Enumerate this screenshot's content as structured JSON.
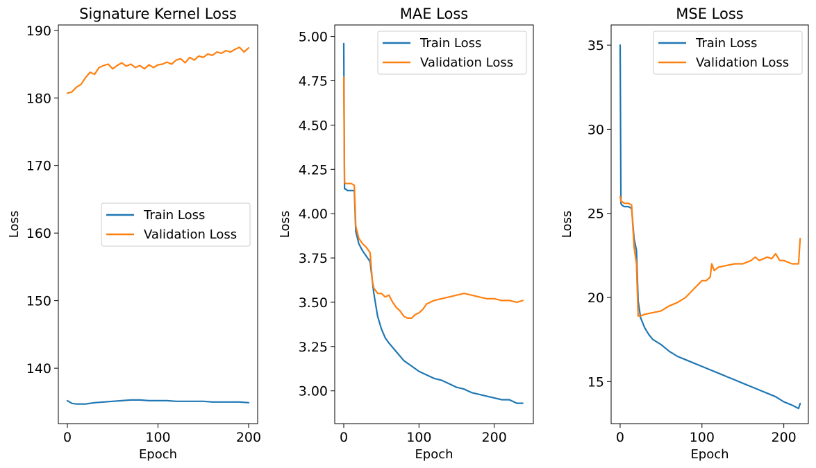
{
  "colors": {
    "train": "#1f77b4",
    "validation": "#ff7f0e"
  },
  "chart_data": [
    {
      "type": "line",
      "title": "Signature Kernel Loss",
      "xlabel": "Epoch",
      "ylabel": "Loss",
      "xlim": [
        -10,
        210
      ],
      "ylim": [
        131.8,
        190.8
      ],
      "xticks": [
        0,
        100,
        200
      ],
      "yticks": [
        140,
        150,
        160,
        170,
        180,
        190
      ],
      "legend": "center-right",
      "series": [
        {
          "name": "Train Loss",
          "color": "#1f77b4",
          "x": [
            0,
            5,
            10,
            20,
            30,
            40,
            50,
            60,
            70,
            80,
            90,
            100,
            110,
            120,
            130,
            140,
            150,
            160,
            170,
            180,
            190,
            200
          ],
          "y": [
            135.2,
            134.8,
            134.7,
            134.7,
            134.9,
            135.0,
            135.1,
            135.2,
            135.3,
            135.3,
            135.2,
            135.2,
            135.2,
            135.1,
            135.1,
            135.1,
            135.1,
            135.0,
            135.0,
            135.0,
            135.0,
            134.9
          ]
        },
        {
          "name": "Validation Loss",
          "color": "#ff7f0e",
          "x": [
            0,
            5,
            10,
            15,
            20,
            25,
            30,
            35,
            40,
            45,
            50,
            55,
            60,
            65,
            70,
            75,
            80,
            85,
            90,
            95,
            100,
            105,
            110,
            115,
            120,
            125,
            130,
            135,
            140,
            145,
            150,
            155,
            160,
            165,
            170,
            175,
            180,
            185,
            190,
            195,
            200
          ],
          "y": [
            180.7,
            180.9,
            181.6,
            182.0,
            183.0,
            183.8,
            183.5,
            184.5,
            184.8,
            185.0,
            184.3,
            184.8,
            185.2,
            184.7,
            185.0,
            184.5,
            184.8,
            184.3,
            184.9,
            184.5,
            184.9,
            185.0,
            185.3,
            185.0,
            185.6,
            185.8,
            185.2,
            186.0,
            185.6,
            186.2,
            186.0,
            186.5,
            186.3,
            186.8,
            186.6,
            187.0,
            186.8,
            187.2,
            187.5,
            186.8,
            187.4
          ]
        }
      ]
    },
    {
      "type": "line",
      "title": "MAE Loss",
      "xlabel": "Epoch",
      "ylabel": "Loss",
      "xlim": [
        -12,
        252
      ],
      "ylim": [
        2.815,
        5.065
      ],
      "xticks": [
        0,
        100,
        200
      ],
      "yticks": [
        3.0,
        3.25,
        3.5,
        3.75,
        4.0,
        4.25,
        4.5,
        4.75,
        5.0
      ],
      "legend": "top-right",
      "series": [
        {
          "name": "Train Loss",
          "color": "#1f77b4",
          "x": [
            0,
            1,
            2,
            5,
            10,
            14,
            16,
            20,
            25,
            30,
            35,
            40,
            45,
            50,
            55,
            60,
            70,
            80,
            90,
            100,
            110,
            120,
            130,
            140,
            150,
            160,
            170,
            180,
            190,
            200,
            210,
            220,
            230,
            238
          ],
          "y": [
            4.96,
            4.14,
            4.14,
            4.13,
            4.13,
            4.13,
            3.9,
            3.83,
            3.79,
            3.76,
            3.73,
            3.55,
            3.42,
            3.35,
            3.3,
            3.27,
            3.22,
            3.17,
            3.14,
            3.11,
            3.09,
            3.07,
            3.06,
            3.04,
            3.02,
            3.01,
            2.99,
            2.98,
            2.97,
            2.96,
            2.95,
            2.95,
            2.93,
            2.93
          ]
        },
        {
          "name": "Validation Loss",
          "color": "#ff7f0e",
          "x": [
            0,
            1,
            2,
            5,
            10,
            14,
            16,
            20,
            25,
            30,
            35,
            38,
            40,
            45,
            50,
            55,
            60,
            65,
            70,
            75,
            80,
            85,
            90,
            95,
            100,
            105,
            110,
            120,
            130,
            140,
            150,
            160,
            170,
            180,
            190,
            200,
            210,
            220,
            230,
            238
          ],
          "y": [
            4.77,
            4.18,
            4.17,
            4.17,
            4.17,
            4.16,
            3.93,
            3.86,
            3.83,
            3.81,
            3.78,
            3.62,
            3.58,
            3.55,
            3.55,
            3.53,
            3.54,
            3.5,
            3.47,
            3.45,
            3.42,
            3.41,
            3.41,
            3.43,
            3.44,
            3.46,
            3.49,
            3.51,
            3.52,
            3.53,
            3.54,
            3.55,
            3.54,
            3.53,
            3.52,
            3.52,
            3.51,
            3.51,
            3.5,
            3.51
          ]
        }
      ]
    },
    {
      "type": "line",
      "title": "MSE Loss",
      "xlabel": "Epoch",
      "ylabel": "Loss",
      "xlim": [
        -11,
        230
      ],
      "ylim": [
        12.5,
        36.2
      ],
      "xticks": [
        0,
        100,
        200
      ],
      "yticks": [
        15,
        20,
        25,
        30,
        35
      ],
      "legend": "top-right",
      "series": [
        {
          "name": "Train Loss",
          "color": "#1f77b4",
          "x": [
            0,
            1,
            2,
            5,
            10,
            14,
            17,
            20,
            22,
            25,
            30,
            35,
            40,
            50,
            60,
            70,
            80,
            90,
            100,
            110,
            120,
            130,
            140,
            150,
            160,
            170,
            180,
            190,
            200,
            210,
            218,
            220
          ],
          "y": [
            35.0,
            25.6,
            25.5,
            25.4,
            25.4,
            25.3,
            23.5,
            22.8,
            19.8,
            18.8,
            18.2,
            17.8,
            17.5,
            17.2,
            16.8,
            16.5,
            16.3,
            16.1,
            15.9,
            15.7,
            15.5,
            15.3,
            15.1,
            14.9,
            14.7,
            14.5,
            14.3,
            14.1,
            13.8,
            13.6,
            13.4,
            13.7
          ]
        },
        {
          "name": "Validation Loss",
          "color": "#ff7f0e",
          "x": [
            0,
            1,
            2,
            5,
            10,
            14,
            17,
            20,
            22,
            25,
            30,
            40,
            50,
            60,
            70,
            80,
            90,
            100,
            105,
            110,
            112,
            115,
            120,
            130,
            140,
            150,
            160,
            165,
            170,
            180,
            185,
            190,
            195,
            200,
            205,
            210,
            215,
            218,
            220
          ],
          "y": [
            26.0,
            25.7,
            25.7,
            25.6,
            25.6,
            25.5,
            23.0,
            22.0,
            18.9,
            18.9,
            19.0,
            19.1,
            19.2,
            19.5,
            19.7,
            20.0,
            20.5,
            21.0,
            21.0,
            21.2,
            22.0,
            21.6,
            21.8,
            21.9,
            22.0,
            22.0,
            22.2,
            22.4,
            22.2,
            22.4,
            22.3,
            22.6,
            22.2,
            22.2,
            22.1,
            22.0,
            22.0,
            22.0,
            23.5
          ]
        }
      ]
    }
  ]
}
